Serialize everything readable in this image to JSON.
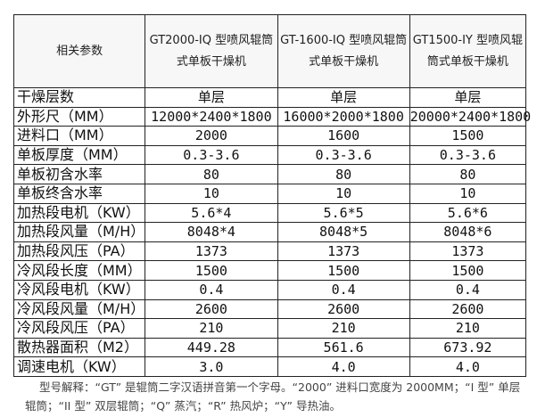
{
  "table": {
    "headers": [
      "相关参数",
      "GT2000-IQ 型喷风辊筒式单板干燥机",
      "GT-1600-IQ 型喷风辊筒式单板干燥机",
      "GT1500-IY 型喷风辊筒式单板干燥机"
    ],
    "rows": [
      [
        "干燥层数",
        "单层",
        "单层",
        "单层"
      ],
      [
        "外形尺（MM）",
        "12000*2400*1800",
        "16000*2000*1800",
        "20000*2400*1800"
      ],
      [
        "进料口（MM）",
        "2000",
        "1600",
        "1500"
      ],
      [
        "单板厚度（MM）",
        "0.3-3.6",
        "0.3-3.6",
        "0.3-3.6"
      ],
      [
        "单板初含水率",
        "80",
        "80",
        "80"
      ],
      [
        "单板终含水率",
        "10",
        "10",
        "10"
      ],
      [
        "加热段电机（KW）",
        "5.6*4",
        "5.6*5",
        "5.6*6"
      ],
      [
        "加热段风量（M/H）",
        "8048*4",
        "8048*5",
        "8048*6"
      ],
      [
        "加热段风压（PA）",
        "1373",
        "1373",
        "1373"
      ],
      [
        "冷风段长度（MM）",
        "1500",
        "1500",
        "1500"
      ],
      [
        "冷风段电机（KW）",
        "0.4",
        "0.4",
        "0.4"
      ],
      [
        "冷风段风量（M/H）",
        "2600",
        "2600",
        "2600"
      ],
      [
        "冷风段风压（PA）",
        "210",
        "210",
        "210"
      ],
      [
        "散热器面积（M2）",
        "449.28",
        "561.6",
        "673.92"
      ],
      [
        "调速电机（KW）",
        "3.0",
        "4.0",
        "4.0"
      ]
    ]
  },
  "note": "型号解释：“GT” 是辊筒二字汉语拼音第一个字母。“2000” 进料口宽度为 2000MM；“I 型” 单层辊筒；“II 型” 双层辊筒；“Q” 蒸汽；“R” 热风炉；“Y” 导热油。"
}
